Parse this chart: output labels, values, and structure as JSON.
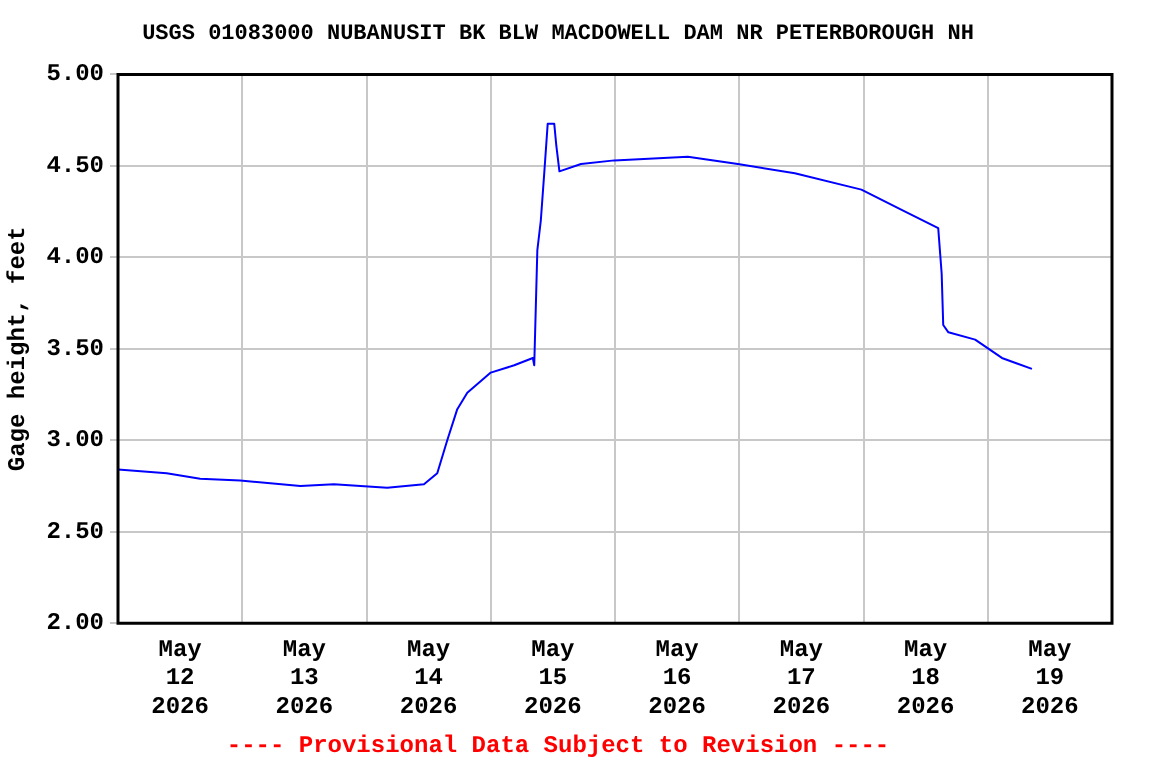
{
  "chart_data": {
    "type": "line",
    "title": "USGS 01083000 NUBANUSIT BK BLW MACDOWELL DAM NR PETERBOROUGH NH",
    "ylabel": "Gage height, feet",
    "annotations": [
      "---- Provisional Data Subject to Revision ----"
    ],
    "x": [
      "2026-05-12T00:00",
      "2026-05-12T09:24",
      "2026-05-12T15:52",
      "2026-05-12T23:36",
      "2026-05-13T11:14",
      "2026-05-13T17:42",
      "2026-05-14T04:00",
      "2026-05-14T11:06",
      "2026-05-14T13:40",
      "2026-05-14T15:36",
      "2026-05-14T17:32",
      "2026-05-14T19:28",
      "2026-05-15T00:00",
      "2026-05-15T04:32",
      "2026-05-15T08:08",
      "2026-05-15T08:24",
      "2026-05-15T09:00",
      "2026-05-15T09:40",
      "2026-05-15T10:20",
      "2026-05-15T11:00",
      "2026-05-15T12:16",
      "2026-05-15T12:40",
      "2026-05-15T13:16",
      "2026-05-15T17:26",
      "2026-05-15T23:52",
      "2026-05-16T14:04",
      "2026-05-16T23:44",
      "2026-05-17T10:44",
      "2026-05-17T23:36",
      "2026-05-18T07:22",
      "2026-05-18T14:26",
      "2026-05-18T15:06",
      "2026-05-18T15:24",
      "2026-05-18T16:24",
      "2026-05-18T21:34",
      "2026-05-19T02:44",
      "2026-05-19T08:32"
    ],
    "series": [
      {
        "color": "#0000ff",
        "values": [
          2.84,
          2.82,
          2.79,
          2.78,
          2.75,
          2.76,
          2.74,
          2.76,
          2.82,
          3.0,
          3.17,
          3.26,
          3.37,
          3.41,
          3.45,
          3.41,
          4.04,
          4.2,
          4.46,
          4.73,
          4.73,
          4.61,
          4.47,
          4.51,
          4.53,
          4.55,
          4.51,
          4.46,
          4.37,
          4.26,
          4.16,
          3.91,
          3.63,
          3.59,
          3.55,
          3.45,
          3.39
        ]
      }
    ],
    "xlim": [
      "2026-05-12T00:00",
      "2026-05-20T00:00"
    ],
    "xticks": [
      {
        "value": "2026-05-12T12:00",
        "label": "May 12 2026"
      },
      {
        "value": "2026-05-13T00:00",
        "label": null
      },
      {
        "value": "2026-05-13T12:00",
        "label": "May 13 2026"
      },
      {
        "value": "2026-05-14T00:00",
        "label": null
      },
      {
        "value": "2026-05-14T12:00",
        "label": "May 14 2026"
      },
      {
        "value": "2026-05-15T00:00",
        "label": null
      },
      {
        "value": "2026-05-15T12:00",
        "label": "May 15 2026"
      },
      {
        "value": "2026-05-16T00:00",
        "label": null
      },
      {
        "value": "2026-05-16T12:00",
        "label": "May 16 2026"
      },
      {
        "value": "2026-05-17T00:00",
        "label": null
      },
      {
        "value": "2026-05-17T12:00",
        "label": "May 17 2026"
      },
      {
        "value": "2026-05-18T00:00",
        "label": null
      },
      {
        "value": "2026-05-18T12:00",
        "label": "May 18 2026"
      },
      {
        "value": "2026-05-19T00:00",
        "label": null
      },
      {
        "value": "2026-05-19T12:00",
        "label": "May 19 2026"
      }
    ],
    "ylim": [
      2,
      5
    ],
    "yticks": [
      {
        "value": 2,
        "label": "2.00"
      },
      {
        "value": 2.5,
        "label": "2.50"
      },
      {
        "value": 3,
        "label": "3.00"
      },
      {
        "value": 3.5,
        "label": "3.50"
      },
      {
        "value": 4,
        "label": "4.00"
      },
      {
        "value": 4.5,
        "label": "4.50"
      },
      {
        "value": 5,
        "label": "5.00"
      }
    ],
    "grid": true,
    "legend": false,
    "marker": "none",
    "line_style": "solid"
  }
}
